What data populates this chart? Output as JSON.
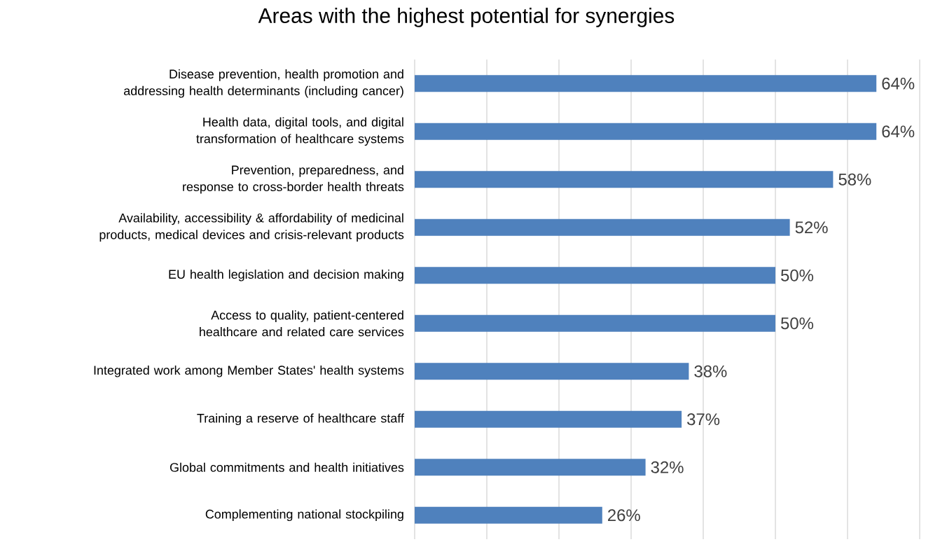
{
  "chart_data": {
    "type": "bar",
    "orientation": "horizontal",
    "title": "Areas with the highest potential for synergies",
    "categories": [
      "Disease prevention, health promotion and addressing health determinants (including cancer)",
      "Health data, digital tools, and digital transformation of healthcare systems",
      "Prevention, preparedness, and response to cross-border health threats",
      "Availability, accessibility & affordability of medicinal products, medical devices and crisis-relevant products",
      "EU health legislation and decision making",
      "Access to quality, patient-centered healthcare and related care services",
      "Integrated work among Member States' health systems",
      "Training a reserve of healthcare staff",
      "Global commitments and health initiatives",
      "Complementing national stockpiling"
    ],
    "values": [
      64,
      64,
      58,
      52,
      50,
      50,
      38,
      37,
      32,
      26
    ],
    "value_labels": [
      "64%",
      "64%",
      "58%",
      "52%",
      "50%",
      "50%",
      "38%",
      "37%",
      "32%",
      "26%"
    ],
    "color": "#4f81bd",
    "xlim": [
      0,
      70
    ],
    "xticks": [
      {
        "value": 0,
        "label": null
      },
      {
        "value": 10,
        "label": null
      },
      {
        "value": 20,
        "label": null
      },
      {
        "value": 30,
        "label": null
      },
      {
        "value": 40,
        "label": null
      },
      {
        "value": 50,
        "label": null
      },
      {
        "value": 60,
        "label": null
      },
      {
        "value": 70,
        "label": null
      }
    ],
    "grid": "x",
    "tick_labels": "y"
  }
}
